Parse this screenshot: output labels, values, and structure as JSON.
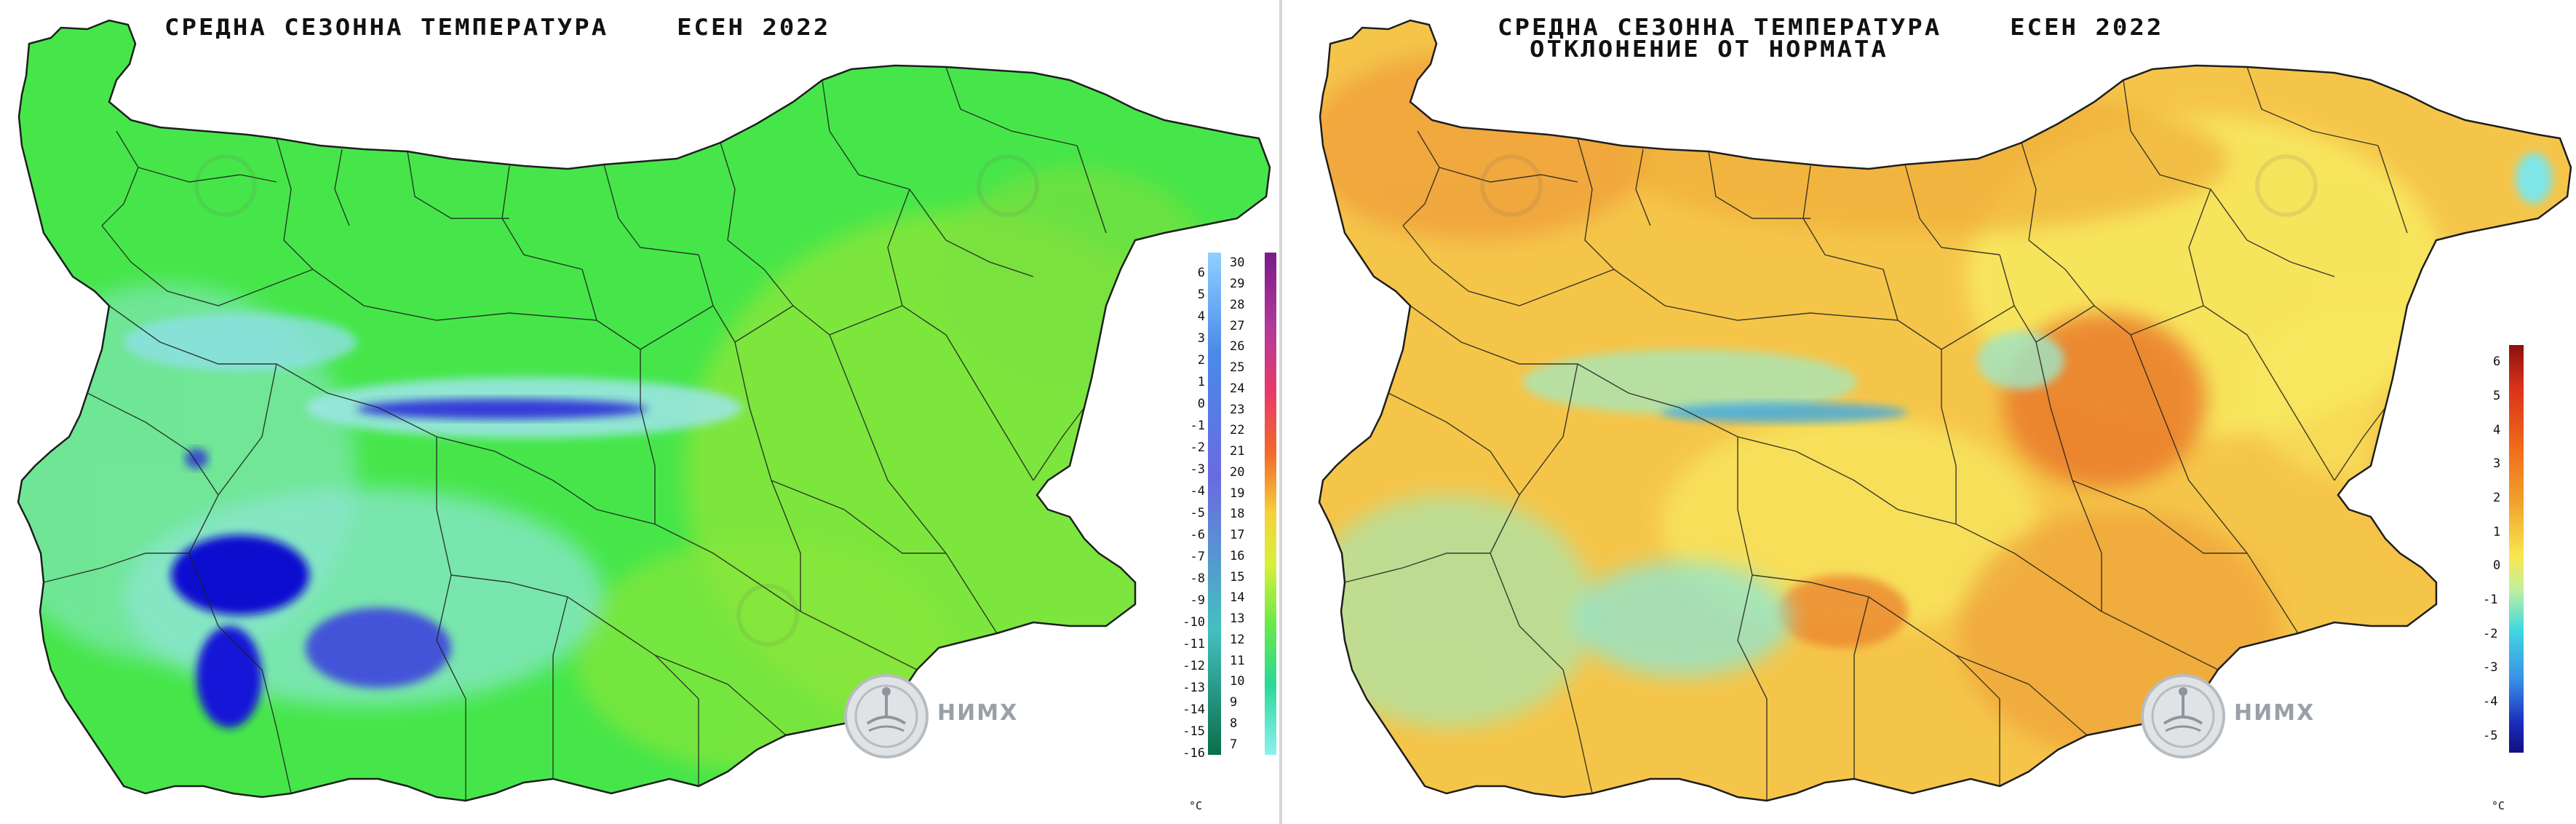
{
  "left_map": {
    "title": "СРЕДНА СЕЗОННА ТЕМПЕРАТУРА    ЕСЕН 2022",
    "unit": "°C",
    "scale_left": [
      "6",
      "5",
      "4",
      "3",
      "2",
      "1",
      "0",
      "-1",
      "-2",
      "-3",
      "-4",
      "-5",
      "-6",
      "-7",
      "-8",
      "-9",
      "-10",
      "-11",
      "-12",
      "-13",
      "-14",
      "-15",
      "-16"
    ],
    "scale_right": [
      "30",
      "29",
      "28",
      "27",
      "26",
      "25",
      "24",
      "23",
      "22",
      "21",
      "20",
      "19",
      "18",
      "17",
      "16",
      "15",
      "14",
      "13",
      "12",
      "11",
      "10",
      "9",
      "8",
      "7"
    ],
    "logo_text": "НИМХ"
  },
  "right_map": {
    "title_line1": "СРЕДНА СЕЗОННА ТЕМПЕРАТУРА    ЕСЕН 2022",
    "title_line2": "ОТКЛОНЕНИЕ ОТ НОРМАТА",
    "unit": "°C",
    "scale": [
      "6",
      "5",
      "4",
      "3",
      "2",
      "1",
      "0",
      "-1",
      "-2",
      "-3",
      "-4",
      "-5"
    ],
    "logo_text": "НИМХ"
  },
  "colors": {
    "left_base": "#46e64a",
    "left_cool": "#7fe6c8",
    "left_mountain": "#1a1ae0",
    "left_warm": "#86e83a",
    "right_base": "#f5c64a",
    "right_warm": "#f08a2a",
    "right_cool": "#8ee6c8",
    "border": "#1e1e1e"
  }
}
